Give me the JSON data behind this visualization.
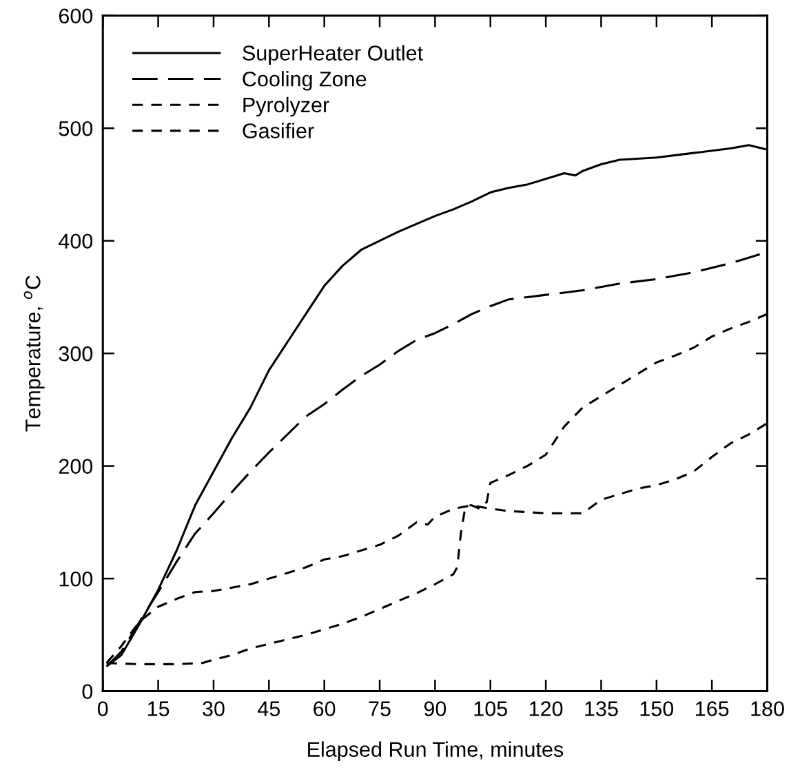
{
  "chart_data": {
    "type": "line",
    "xlabel": "Elapsed Run Time, minutes",
    "ylabel": "Temperature, $^{o}$C",
    "xlim": [
      0,
      180
    ],
    "ylim": [
      0,
      600
    ],
    "xticks": [
      0,
      15,
      30,
      45,
      60,
      75,
      90,
      105,
      120,
      135,
      150,
      165,
      180
    ],
    "yticks": [
      0,
      100,
      200,
      300,
      400,
      500,
      600
    ],
    "grid": false,
    "legend": "top left",
    "marker": "none",
    "series": [
      {
        "name": "SuperHeater Outlet",
        "color": "#000000",
        "line_style": "solid",
        "x": [
          1,
          5,
          10,
          15,
          20,
          25,
          30,
          35,
          40,
          45,
          50,
          55,
          60,
          65,
          70,
          75,
          80,
          85,
          90,
          95,
          100,
          105,
          110,
          115,
          120,
          125,
          128,
          130,
          135,
          140,
          150,
          160,
          170,
          175,
          180
        ],
        "values": [
          22,
          32,
          60,
          90,
          125,
          165,
          195,
          225,
          252,
          285,
          310,
          335,
          360,
          378,
          392,
          400,
          408,
          415,
          422,
          428,
          435,
          443,
          447,
          450,
          455,
          460,
          458,
          462,
          468,
          472,
          474,
          478,
          482,
          485,
          481
        ]
      },
      {
        "name": "Cooling Zone",
        "color": "#000000",
        "line_style": "dashed",
        "x": [
          1,
          5,
          10,
          15,
          20,
          25,
          30,
          35,
          40,
          45,
          50,
          55,
          60,
          65,
          70,
          75,
          80,
          85,
          90,
          95,
          100,
          105,
          110,
          115,
          120,
          130,
          140,
          150,
          160,
          170,
          180
        ],
        "values": [
          22,
          35,
          62,
          88,
          115,
          140,
          158,
          177,
          195,
          212,
          228,
          244,
          255,
          268,
          280,
          290,
          302,
          312,
          318,
          326,
          335,
          342,
          348,
          350,
          352,
          356,
          362,
          366,
          372,
          380,
          390
        ]
      },
      {
        "name": "Pyrolyzer",
        "color": "#000000",
        "line_style": "dotted",
        "x": [
          1,
          5,
          10,
          15,
          20,
          25,
          30,
          35,
          40,
          45,
          50,
          55,
          60,
          65,
          70,
          75,
          80,
          85,
          88,
          90,
          95,
          100,
          105,
          110,
          120,
          125,
          130,
          135,
          140,
          145,
          150,
          155,
          160,
          165,
          170,
          175,
          180
        ],
        "values": [
          25,
          40,
          62,
          75,
          82,
          88,
          89,
          92,
          95,
          100,
          105,
          110,
          117,
          120,
          125,
          130,
          138,
          150,
          148,
          155,
          162,
          165,
          162,
          160,
          158,
          158,
          158,
          170,
          175,
          180,
          183,
          188,
          195,
          208,
          220,
          228,
          238
        ]
      },
      {
        "name": "Gasifier",
        "color": "#000000",
        "line_style": "dotted",
        "x": [
          1,
          10,
          20,
          27,
          30,
          35,
          40,
          45,
          50,
          55,
          60,
          65,
          70,
          75,
          80,
          85,
          90,
          95,
          96,
          97,
          98,
          99,
          100,
          102,
          104,
          105,
          110,
          115,
          120,
          125,
          130,
          135,
          140,
          145,
          150,
          155,
          160,
          165,
          170,
          175,
          180
        ],
        "values": [
          25,
          24,
          24,
          25,
          28,
          32,
          38,
          42,
          46,
          50,
          55,
          60,
          66,
          73,
          80,
          87,
          95,
          104,
          110,
          140,
          160,
          165,
          165,
          162,
          168,
          185,
          192,
          200,
          210,
          235,
          252,
          262,
          272,
          282,
          292,
          298,
          305,
          315,
          322,
          328,
          335
        ]
      }
    ]
  }
}
